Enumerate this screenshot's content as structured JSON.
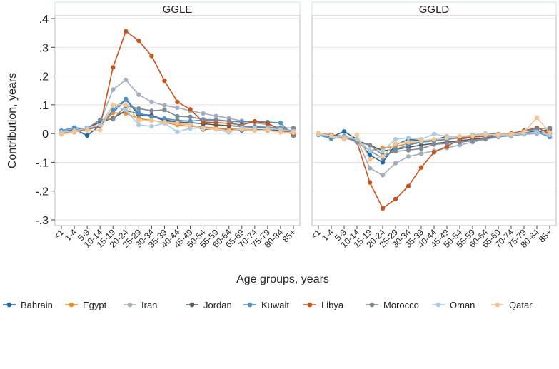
{
  "chart_data": {
    "type": "line",
    "ylabel": "Contribution, years",
    "xlabel": "Age groups, years",
    "categories": [
      "<1",
      "1-4",
      "5-9",
      "10-14",
      "15-19",
      "20-24",
      "25-29",
      "30-34",
      "35-39",
      "40-44",
      "45-49",
      "50-54",
      "55-59",
      "60-64",
      "65-69",
      "70-74",
      "75-79",
      "80-84",
      "85+"
    ],
    "ylim": [
      -0.32,
      0.41
    ],
    "yticks": [
      -0.3,
      -0.2,
      -0.1,
      0,
      0.1,
      0.2,
      0.3,
      0.4
    ],
    "ytick_labels": [
      "-.3",
      "-.2",
      "-.1",
      "0",
      ".1",
      ".2",
      ".3",
      ".4"
    ],
    "grid": true,
    "legend_position": "bottom",
    "panels": [
      {
        "title": "GGLE",
        "series": [
          {
            "name": "Bahrain",
            "color": "#1a6aab",
            "values": [
              0.005,
              0.015,
              -0.007,
              0.028,
              0.073,
              0.118,
              0.064,
              0.061,
              0.045,
              0.035,
              0.031,
              0.014,
              0.017,
              0.014,
              0.011,
              0.014,
              0.012,
              0.011,
              0.001
            ]
          },
          {
            "name": "Egypt",
            "color": "#f28e2b",
            "values": [
              0.0,
              0.005,
              0.014,
              0.025,
              0.072,
              0.07,
              0.052,
              0.046,
              0.038,
              0.03,
              0.025,
              0.023,
              0.019,
              0.017,
              0.015,
              0.013,
              0.01,
              0.008,
              0.004
            ]
          },
          {
            "name": "Iran",
            "color": "#a3afbe",
            "values": [
              0.002,
              0.005,
              0.015,
              0.04,
              0.153,
              0.187,
              0.135,
              0.11,
              0.098,
              0.09,
              0.079,
              0.07,
              0.061,
              0.053,
              0.044,
              0.037,
              0.031,
              0.02,
              0.007
            ]
          },
          {
            "name": "Jordan",
            "color": "#4f5b69",
            "values": [
              0.005,
              0.012,
              0.02,
              0.04,
              0.053,
              0.08,
              0.068,
              0.063,
              0.048,
              0.04,
              0.038,
              0.034,
              0.03,
              0.027,
              0.025,
              0.022,
              0.019,
              0.016,
              0.009
            ]
          },
          {
            "name": "Kuwait",
            "color": "#4f92c5",
            "values": [
              0.01,
              0.021,
              0.015,
              0.025,
              0.082,
              0.12,
              0.071,
              0.058,
              0.052,
              0.046,
              0.043,
              0.047,
              0.045,
              0.043,
              0.04,
              0.042,
              0.04,
              0.037,
              -0.008
            ]
          },
          {
            "name": "Libya",
            "color": "#c8531b",
            "values": [
              -0.002,
              0.008,
              0.015,
              0.025,
              0.23,
              0.356,
              0.323,
              0.27,
              0.184,
              0.11,
              0.084,
              0.04,
              0.038,
              0.035,
              0.03,
              0.042,
              0.035,
              0.014,
              -0.002
            ]
          },
          {
            "name": "Morocco",
            "color": "#7f8893",
            "values": [
              0.005,
              0.01,
              0.018,
              0.048,
              0.05,
              0.097,
              0.087,
              0.079,
              0.082,
              0.06,
              0.058,
              0.049,
              0.048,
              0.043,
              0.025,
              0.024,
              0.022,
              0.02,
              0.019
            ]
          },
          {
            "name": "Oman",
            "color": "#a8cce8",
            "values": [
              0.005,
              0.01,
              0.018,
              0.03,
              0.098,
              0.081,
              0.03,
              0.025,
              0.036,
              0.006,
              0.018,
              0.02,
              0.014,
              0.004,
              0.02,
              0.019,
              0.018,
              0.014,
              0.008
            ]
          },
          {
            "name": "Qatar",
            "color": "#f6c48d",
            "values": [
              -0.003,
              0.007,
              0.01,
              0.012,
              0.1,
              0.1,
              0.045,
              0.045,
              0.04,
              0.037,
              0.03,
              0.017,
              0.016,
              0.01,
              0.014,
              0.01,
              0.012,
              0.004,
              0.003
            ]
          }
        ]
      },
      {
        "title": "GGLD",
        "series": [
          {
            "name": "Bahrain",
            "color": "#1a6aab",
            "values": [
              -0.003,
              -0.012,
              0.007,
              -0.02,
              -0.075,
              -0.1,
              -0.04,
              -0.02,
              -0.025,
              -0.022,
              -0.01,
              -0.013,
              -0.005,
              -0.002,
              -0.002,
              -0.003,
              0.001,
              0.01,
              -0.007
            ]
          },
          {
            "name": "Egypt",
            "color": "#f28e2b",
            "values": [
              0.001,
              -0.006,
              -0.01,
              -0.02,
              -0.06,
              -0.05,
              -0.045,
              -0.035,
              -0.03,
              -0.025,
              -0.02,
              -0.015,
              -0.01,
              -0.006,
              -0.004,
              -0.002,
              0.0,
              0.003,
              0.001
            ]
          },
          {
            "name": "Iran",
            "color": "#a3afbe",
            "values": [
              -0.002,
              -0.005,
              -0.01,
              -0.02,
              -0.12,
              -0.145,
              -0.103,
              -0.08,
              -0.07,
              -0.06,
              -0.05,
              -0.04,
              -0.03,
              -0.02,
              -0.012,
              -0.008,
              -0.003,
              0.0,
              0.005
            ]
          },
          {
            "name": "Jordan",
            "color": "#4f5b69",
            "values": [
              -0.003,
              -0.008,
              -0.015,
              -0.025,
              -0.04,
              -0.06,
              -0.055,
              -0.048,
              -0.04,
              -0.035,
              -0.03,
              -0.025,
              -0.02,
              -0.015,
              -0.01,
              -0.005,
              0.0,
              0.005,
              0.015
            ]
          },
          {
            "name": "Kuwait",
            "color": "#4f92c5",
            "values": [
              -0.005,
              -0.018,
              -0.01,
              -0.025,
              -0.06,
              -0.085,
              -0.055,
              -0.04,
              -0.03,
              -0.025,
              -0.02,
              -0.015,
              -0.012,
              -0.01,
              -0.008,
              -0.008,
              0.0,
              0.005,
              -0.012
            ]
          },
          {
            "name": "Libya",
            "color": "#c8531b",
            "values": [
              0.0,
              -0.005,
              -0.01,
              -0.03,
              -0.17,
              -0.26,
              -0.228,
              -0.183,
              -0.118,
              -0.065,
              -0.045,
              -0.02,
              -0.012,
              -0.008,
              -0.004,
              0.0,
              0.01,
              0.02,
              0.0
            ]
          },
          {
            "name": "Morocco",
            "color": "#7f8893",
            "values": [
              -0.003,
              -0.008,
              -0.012,
              -0.03,
              -0.04,
              -0.075,
              -0.062,
              -0.058,
              -0.052,
              -0.038,
              -0.034,
              -0.03,
              -0.025,
              -0.018,
              -0.01,
              -0.004,
              0.008,
              0.015,
              0.02
            ]
          },
          {
            "name": "Oman",
            "color": "#a8cce8",
            "values": [
              -0.003,
              -0.008,
              -0.012,
              -0.02,
              -0.06,
              -0.06,
              -0.02,
              -0.015,
              -0.02,
              -0.002,
              -0.01,
              -0.01,
              -0.006,
              0.0,
              -0.008,
              -0.006,
              0.0,
              0.005,
              -0.005
            ]
          },
          {
            "name": "Qatar",
            "color": "#f6c48d",
            "values": [
              0.001,
              -0.008,
              -0.02,
              -0.005,
              -0.09,
              -0.08,
              -0.035,
              -0.03,
              -0.025,
              -0.02,
              -0.015,
              -0.01,
              -0.008,
              -0.005,
              -0.003,
              -0.002,
              0.005,
              0.055,
              0.004
            ]
          }
        ]
      }
    ],
    "legend": [
      "Bahrain",
      "Egypt",
      "Iran",
      "Jordan",
      "Kuwait",
      "Libya",
      "Morocco",
      "Oman",
      "Qatar"
    ]
  }
}
